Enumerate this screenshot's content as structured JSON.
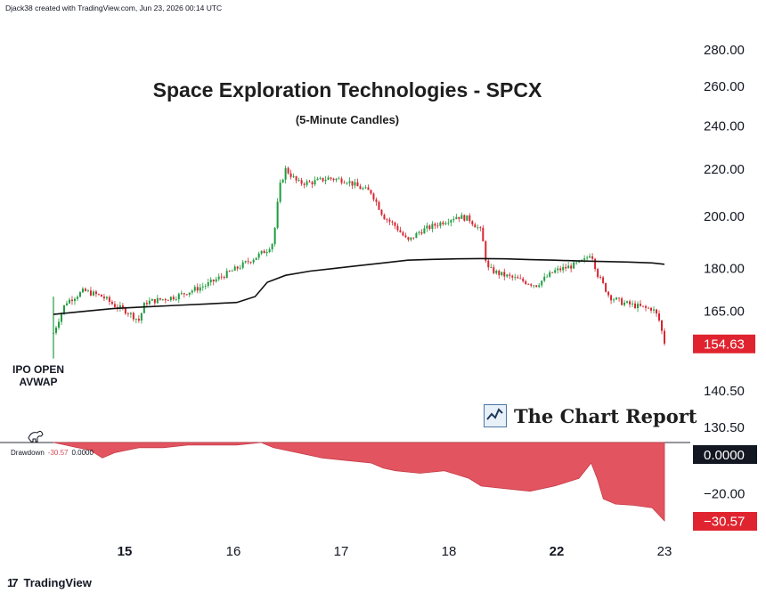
{
  "header": {
    "credit": "Djack38 created with TradingView.com, Jun 23, 2026 00:14 UTC"
  },
  "footer": {
    "logo_text": "TradingView",
    "logo_mark": "17"
  },
  "watermark": {
    "text": "The Chart Report"
  },
  "chart_data": [
    {
      "type": "candlestick",
      "title": "Space Exploration Technologies - SPCX",
      "subtitle": "(5-Minute Candles)",
      "y_scale": "log",
      "y_ticks": [
        280.0,
        260.0,
        240.0,
        220.0,
        200.0,
        180.0,
        165.0,
        140.5,
        130.5
      ],
      "y_tick_labels": [
        "280.00",
        "260.00",
        "240.00",
        "220.00",
        "200.00",
        "180.00",
        "165.00",
        "140.50",
        "130.50"
      ],
      "ylim": [
        125,
        300
      ],
      "last_price": 154.63,
      "last_price_label": "154.63",
      "last_price_color": "#e0242f",
      "up_color": "#1e9c3e",
      "down_color": "#d72631",
      "annotation": "IPO OPEN\nAVWAP",
      "annotation_lines": [
        "IPO OPEN",
        "AVWAP"
      ],
      "x_ticks": [
        {
          "label": "15",
          "bold": true
        },
        {
          "label": "16",
          "bold": false
        },
        {
          "label": "17",
          "bold": false
        },
        {
          "label": "18",
          "bold": false
        },
        {
          "label": "22",
          "bold": true
        },
        {
          "label": "23",
          "bold": false
        }
      ],
      "price_path": [
        [
          0.0,
          158
        ],
        [
          0.02,
          168
        ],
        [
          0.05,
          172
        ],
        [
          0.08,
          170
        ],
        [
          0.1,
          167
        ],
        [
          0.12,
          165
        ],
        [
          0.14,
          162
        ],
        [
          0.15,
          168
        ],
        [
          0.2,
          170
        ],
        [
          0.25,
          174
        ],
        [
          0.3,
          180
        ],
        [
          0.33,
          184
        ],
        [
          0.35,
          187
        ],
        [
          0.36,
          190
        ],
        [
          0.37,
          212
        ],
        [
          0.38,
          220
        ],
        [
          0.4,
          214
        ],
        [
          0.42,
          214
        ],
        [
          0.45,
          216
        ],
        [
          0.48,
          215
        ],
        [
          0.5,
          212
        ],
        [
          0.52,
          210
        ],
        [
          0.54,
          200
        ],
        [
          0.56,
          196
        ],
        [
          0.58,
          190
        ],
        [
          0.6,
          194
        ],
        [
          0.62,
          196
        ],
        [
          0.64,
          198
        ],
        [
          0.66,
          200
        ],
        [
          0.68,
          199
        ],
        [
          0.7,
          194
        ],
        [
          0.71,
          180
        ],
        [
          0.73,
          178
        ],
        [
          0.76,
          176
        ],
        [
          0.79,
          174
        ],
        [
          0.82,
          179
        ],
        [
          0.85,
          181
        ],
        [
          0.87,
          183
        ],
        [
          0.88,
          186
        ],
        [
          0.89,
          178
        ],
        [
          0.9,
          174
        ],
        [
          0.91,
          170
        ],
        [
          0.93,
          168
        ],
        [
          0.95,
          167
        ],
        [
          0.97,
          166
        ],
        [
          0.98,
          166
        ],
        [
          0.99,
          163
        ],
        [
          1.0,
          155
        ]
      ],
      "avwap_path": [
        [
          0.0,
          164
        ],
        [
          0.05,
          165
        ],
        [
          0.1,
          166
        ],
        [
          0.15,
          166.5
        ],
        [
          0.2,
          167
        ],
        [
          0.25,
          167.5
        ],
        [
          0.3,
          168
        ],
        [
          0.33,
          170
        ],
        [
          0.35,
          175
        ],
        [
          0.38,
          177.5
        ],
        [
          0.42,
          179
        ],
        [
          0.46,
          180
        ],
        [
          0.5,
          181
        ],
        [
          0.54,
          182
        ],
        [
          0.58,
          183
        ],
        [
          0.62,
          183.3
        ],
        [
          0.66,
          183.5
        ],
        [
          0.7,
          183.6
        ],
        [
          0.74,
          183.5
        ],
        [
          0.78,
          183.2
        ],
        [
          0.82,
          183
        ],
        [
          0.86,
          182.7
        ],
        [
          0.9,
          182.5
        ],
        [
          0.94,
          182.3
        ],
        [
          0.98,
          182
        ],
        [
          1.0,
          181.5
        ]
      ]
    },
    {
      "type": "area",
      "series_name": "Drawdown",
      "legend_value_1": "-30.57",
      "legend_value_2": "0.0000",
      "y_tick_labels": [
        "0.0000",
        "−20.00"
      ],
      "zero_label": "0.0000",
      "last_label": "−30.57",
      "last_value": -30.57,
      "ylim": [
        -33,
        0
      ],
      "fill_color": "#e25560",
      "drawdown_path": [
        [
          0.0,
          0
        ],
        [
          0.02,
          -1
        ],
        [
          0.04,
          -2
        ],
        [
          0.06,
          -3
        ],
        [
          0.08,
          -6
        ],
        [
          0.1,
          -4
        ],
        [
          0.12,
          -3
        ],
        [
          0.14,
          -2
        ],
        [
          0.18,
          -2
        ],
        [
          0.22,
          -1
        ],
        [
          0.3,
          -1
        ],
        [
          0.34,
          0
        ],
        [
          0.36,
          -2
        ],
        [
          0.38,
          -3
        ],
        [
          0.4,
          -4
        ],
        [
          0.44,
          -6
        ],
        [
          0.48,
          -7
        ],
        [
          0.52,
          -8
        ],
        [
          0.54,
          -10
        ],
        [
          0.56,
          -11
        ],
        [
          0.6,
          -12
        ],
        [
          0.64,
          -11
        ],
        [
          0.68,
          -14
        ],
        [
          0.7,
          -17
        ],
        [
          0.74,
          -18
        ],
        [
          0.78,
          -19
        ],
        [
          0.82,
          -17
        ],
        [
          0.86,
          -14
        ],
        [
          0.88,
          -8
        ],
        [
          0.89,
          -14
        ],
        [
          0.9,
          -22
        ],
        [
          0.92,
          -24
        ],
        [
          0.95,
          -24.5
        ],
        [
          0.98,
          -25.5
        ],
        [
          1.0,
          -30.57
        ]
      ]
    }
  ]
}
